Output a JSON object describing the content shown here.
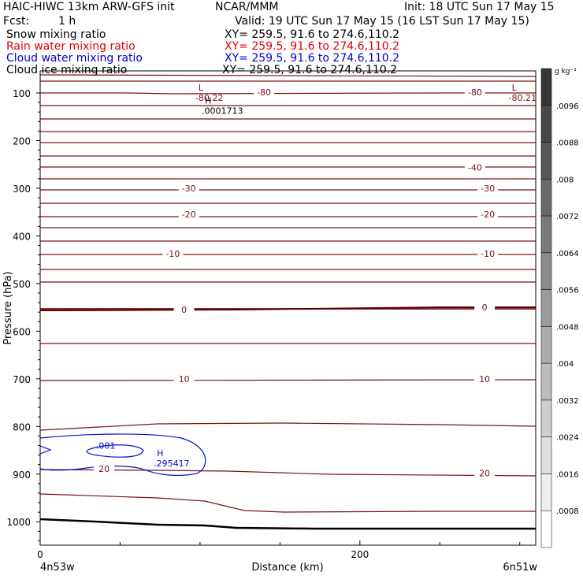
{
  "header": {
    "model": "HAIC-HIWC 13km ARW-GFS init",
    "center": "NCAR/MMM",
    "init": "Init: 18 UTC Sun 17 May 15",
    "fcst_label": "Fcst:",
    "fcst_value": "1 h",
    "valid": "Valid: 19 UTC Sun 17 May 15 (16 LST Sun 17 May 15)",
    "fields": [
      {
        "name": "Snow mixing ratio",
        "xy": "XY= 259.5, 91.6 to 274.6,110.2",
        "color": "#000000"
      },
      {
        "name": "Rain water mixing ratio",
        "xy": "XY= 259.5, 91.6 to 274.6,110.2",
        "color": "#e00000"
      },
      {
        "name": "Cloud water mixing ratio",
        "xy": "XY= 259.5, 91.6 to 274.6,110.2",
        "color": "#0000d0"
      },
      {
        "name": "Cloud ice mixing ratio",
        "xy": "XY= 259.5, 91.6 to 274.6,110.2",
        "color": "#000000"
      }
    ]
  },
  "colorbar": {
    "unit": "g kg⁻¹",
    "labels": [
      ".0096",
      ".0088",
      ".008",
      ".0072",
      ".0064",
      ".0056",
      ".0048",
      ".004",
      ".0032",
      ".0024",
      ".0016",
      ".0008"
    ]
  },
  "chart_data": {
    "type": "contour",
    "ylabel": "Pressure (hPa)",
    "xlabel": "Distance (km)",
    "y_ticks": [
      100,
      200,
      300,
      400,
      500,
      600,
      700,
      800,
      900,
      1000
    ],
    "x_ticks": [
      0,
      200
    ],
    "x_end_labels": {
      "left": "4n53w",
      "right": "6n51w"
    },
    "xlim": [
      0,
      310
    ],
    "temperature_contour_labels": [
      {
        "value": "-80",
        "x": 140,
        "y": 98
      },
      {
        "value": "-80",
        "x": 272,
        "y": 98
      },
      {
        "value": "-40",
        "x": 272,
        "y": 256
      },
      {
        "value": "-30",
        "x": 93,
        "y": 300
      },
      {
        "value": "-30",
        "x": 280,
        "y": 300
      },
      {
        "value": "-20",
        "x": 93,
        "y": 355
      },
      {
        "value": "-20",
        "x": 280,
        "y": 355
      },
      {
        "value": "-10",
        "x": 83,
        "y": 437
      },
      {
        "value": "-10",
        "x": 280,
        "y": 437
      },
      {
        "value": "0",
        "x": 90,
        "y": 555
      },
      {
        "value": "0",
        "x": 278,
        "y": 550
      },
      {
        "value": "10",
        "x": 90,
        "y": 700
      },
      {
        "value": "10",
        "x": 278,
        "y": 700
      },
      {
        "value": "20",
        "x": 40,
        "y": 889
      },
      {
        "value": "20",
        "x": 278,
        "y": 898
      }
    ],
    "extrema": [
      {
        "type": "L",
        "value": "-80.22",
        "x": 99,
        "y": 98
      },
      {
        "type": "L",
        "value": "-80.21",
        "x": 295,
        "y": 98
      },
      {
        "type": "H",
        "value": ".0001713",
        "x": 103,
        "y": 126
      },
      {
        "type": "H",
        "value": ".295417",
        "x": 73,
        "y": 866
      }
    ],
    "cloud_water_labels": [
      {
        "value": ".001",
        "x": 41,
        "y": 840
      }
    ]
  }
}
